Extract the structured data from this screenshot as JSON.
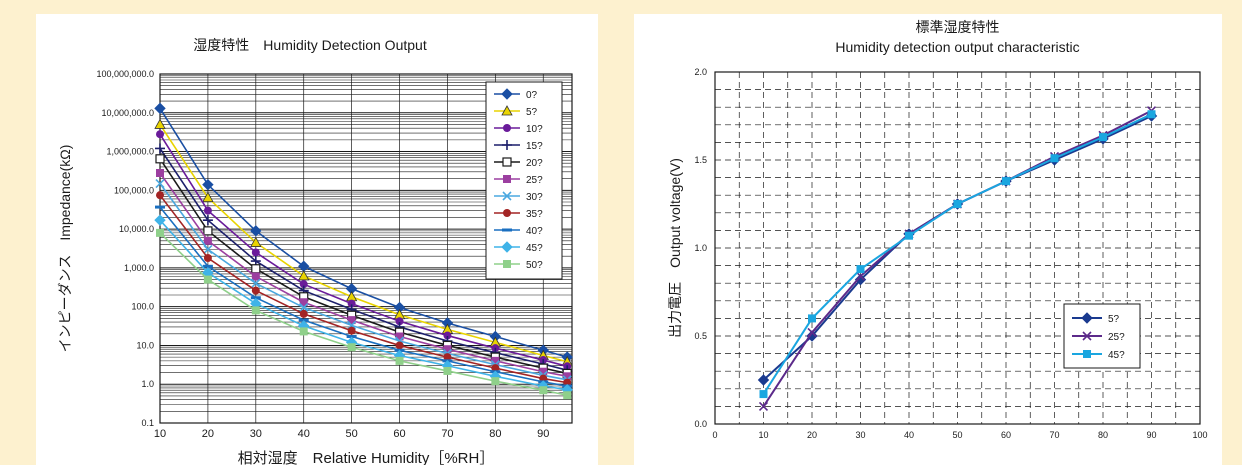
{
  "colors": {
    "background": "#fdf1cf",
    "panel": "#ffffff",
    "grid": "#1a1a1a"
  },
  "chart_data": [
    {
      "type": "line",
      "title": "湿度特性　Humidity Detection Output",
      "xlabel": "相対湿度　Relative Humidity［%RH］",
      "ylabel": "インピーダンス　Impedance(kΩ)",
      "y_scale": "log",
      "xlim": [
        10,
        96
      ],
      "ylim": [
        0.1,
        100000000
      ],
      "x_ticks": [
        "10",
        "20",
        "30",
        "40",
        "50",
        "60",
        "70",
        "80",
        "90"
      ],
      "y_ticks": [
        "0.1",
        "1.0",
        "10.0",
        "100.0",
        "1,000.0",
        "10,000.0",
        "100,000.0",
        "1,000,000.0",
        "10,000,000.0",
        "100,000,000.0"
      ],
      "grid": true,
      "legend": "top-right",
      "x": [
        10,
        20,
        30,
        40,
        50,
        60,
        70,
        80,
        90,
        95
      ],
      "series": [
        {
          "name": "0?",
          "color": "#1a4fa3",
          "marker": "diamond",
          "values": [
            13000000,
            140000,
            9000,
            1100,
            290,
            95,
            38,
            17,
            7.5,
            5
          ]
        },
        {
          "name": "5?",
          "color": "#e9d400",
          "marker": "triangle",
          "values": [
            5000000,
            65000,
            4500,
            620,
            180,
            62,
            26,
            12,
            5.5,
            3.8
          ]
        },
        {
          "name": "10?",
          "color": "#6a1b9a",
          "marker": "circle",
          "values": [
            2800000,
            30000,
            2500,
            380,
            120,
            42,
            18,
            8.5,
            4.2,
            2.9
          ]
        },
        {
          "name": "15?",
          "color": "#1c1f6b",
          "marker": "plus",
          "values": [
            1200000,
            17000,
            1500,
            260,
            85,
            30,
            13,
            6.5,
            3.3,
            2.3
          ]
        },
        {
          "name": "20?",
          "color": "#1a1a1a",
          "marker": "open-square",
          "values": [
            650000,
            9000,
            950,
            180,
            60,
            22,
            10,
            5,
            2.6,
            1.9
          ]
        },
        {
          "name": "25?",
          "color": "#9c3fa0",
          "marker": "square",
          "values": [
            280000,
            5000,
            600,
            130,
            45,
            17,
            8,
            4,
            2.1,
            1.6
          ]
        },
        {
          "name": "30?",
          "color": "#4aa8e0",
          "marker": "x",
          "values": [
            150000,
            3000,
            400,
            95,
            33,
            13,
            6.2,
            3.2,
            1.7,
            1.3
          ]
        },
        {
          "name": "35?",
          "color": "#a32424",
          "marker": "circle",
          "values": [
            75000,
            1800,
            260,
            65,
            24,
            10,
            5,
            2.6,
            1.4,
            1.1
          ]
        },
        {
          "name": "40?",
          "color": "#1a6fc0",
          "marker": "dash",
          "values": [
            37000,
            1100,
            170,
            45,
            17,
            7.5,
            4,
            2.1,
            1.15,
            0.9
          ]
        },
        {
          "name": "45?",
          "color": "#3fb3e8",
          "marker": "diamond",
          "values": [
            17000,
            750,
            120,
            32,
            12,
            5.5,
            3,
            1.6,
            0.9,
            0.72
          ]
        },
        {
          "name": "50?",
          "color": "#8fd08a",
          "marker": "square",
          "values": [
            8000,
            500,
            80,
            23,
            9,
            4,
            2.2,
            1.2,
            0.7,
            0.52
          ]
        }
      ]
    },
    {
      "type": "line",
      "title": "標準湿度特性",
      "subtitle": "Humidity detection output characteristic",
      "xlabel": "",
      "ylabel": "出力電圧　Output voltage(V)",
      "xlim": [
        0,
        100
      ],
      "ylim": [
        0,
        2
      ],
      "x_ticks": [
        "0",
        "10",
        "20",
        "30",
        "40",
        "50",
        "60",
        "70",
        "80",
        "90",
        "100"
      ],
      "y_ticks": [
        "0.0",
        "0.5",
        "1.0",
        "1.5",
        "2.0"
      ],
      "grid": true,
      "legend": "bottom-right",
      "x": [
        10,
        20,
        30,
        40,
        50,
        60,
        70,
        80,
        90
      ],
      "series": [
        {
          "name": "5?",
          "color": "#1a3a8f",
          "marker": "diamond",
          "values": [
            0.25,
            0.5,
            0.82,
            1.08,
            1.25,
            1.38,
            1.5,
            1.62,
            1.75
          ]
        },
        {
          "name": "25?",
          "color": "#5c2a8a",
          "marker": "x",
          "values": [
            0.1,
            0.52,
            0.84,
            1.08,
            1.25,
            1.38,
            1.52,
            1.64,
            1.78
          ]
        },
        {
          "name": "45?",
          "color": "#1aa6e0",
          "marker": "square",
          "values": [
            0.17,
            0.6,
            0.88,
            1.07,
            1.25,
            1.38,
            1.51,
            1.63,
            1.76
          ]
        }
      ]
    }
  ]
}
